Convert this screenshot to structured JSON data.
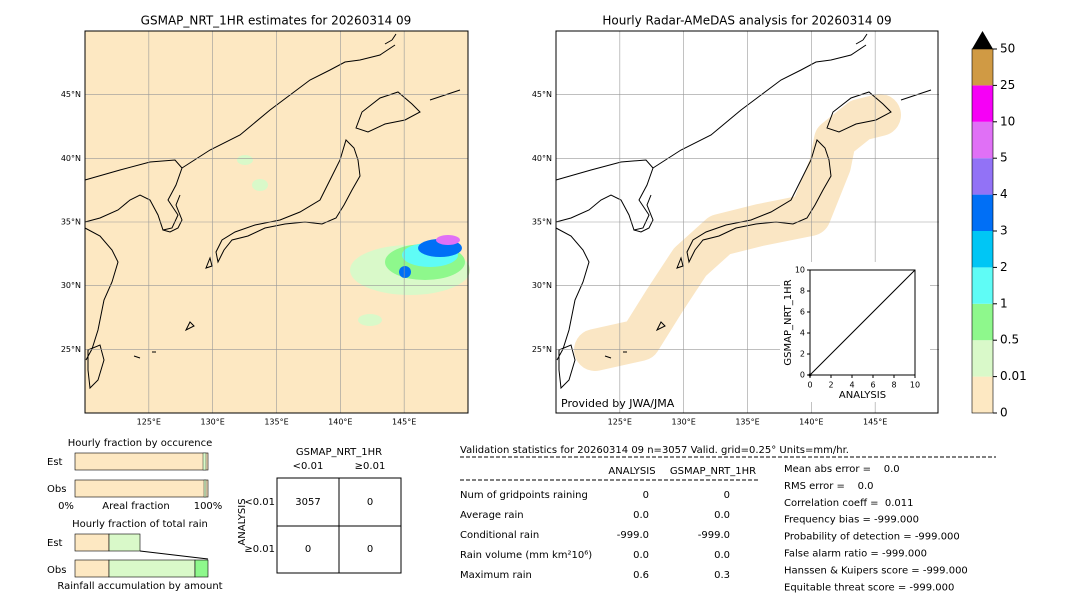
{
  "left_map": {
    "title": "GSMAP_NRT_1HR estimates for 20260314 09"
  },
  "right_map": {
    "title": "Hourly Radar-AMeDAS analysis for 20260314 09",
    "credit": "Provided by JWA/JMA",
    "inset": {
      "xlabel": "ANALYSIS",
      "ylabel": "GSMAP_NRT_1HR",
      "xlim": [
        0,
        10
      ],
      "ylim": [
        0,
        10
      ],
      "xticks": [
        0,
        2,
        4,
        6,
        8,
        10
      ],
      "yticks": [
        0,
        2,
        4,
        6,
        8,
        10
      ]
    }
  },
  "map_axes": {
    "lon_lim": [
      120,
      150
    ],
    "lat_lim": [
      20,
      50
    ],
    "lon_ticks": [
      {
        "value": 125,
        "label": "125°E"
      },
      {
        "value": 130,
        "label": "130°E"
      },
      {
        "value": 135,
        "label": "135°E"
      },
      {
        "value": 140,
        "label": "140°E"
      },
      {
        "value": 145,
        "label": "145°E"
      }
    ],
    "lat_ticks": [
      {
        "value": 25,
        "label": "25°N"
      },
      {
        "value": 30,
        "label": "30°N"
      },
      {
        "value": 35,
        "label": "35°N"
      },
      {
        "value": 40,
        "label": "40°N"
      },
      {
        "value": 45,
        "label": "45°N"
      }
    ]
  },
  "colorbar": {
    "levels": [
      0,
      0.01,
      0.5,
      1,
      2,
      3,
      4,
      5,
      10,
      25,
      50
    ],
    "colors": [
      "#fde8c2",
      "#d9f9c9",
      "#8ef88c",
      "#5ffcf6",
      "#00c6f5",
      "#006ff6",
      "#9272f6",
      "#e070f6",
      "#f600f6",
      "#d09a44"
    ]
  },
  "fraction_occurrence": {
    "title": "Hourly fraction by occurence",
    "rows": [
      "Est",
      "Obs"
    ],
    "xlabel": "Areal fraction",
    "tick_labels": [
      "0%",
      "100%"
    ]
  },
  "fraction_rain": {
    "title": "Hourly fraction of total rain",
    "rows": [
      "Est",
      "Obs"
    ],
    "xlabel": "Rainfall accumulation by amount"
  },
  "contingency": {
    "title": "GSMAP_NRT_1HR",
    "col_headers": [
      "<0.01",
      "≥0.01"
    ],
    "row_label": "ANALYSIS",
    "row_headers": [
      "<0.01",
      "≥0.01"
    ],
    "cells": [
      [
        3057,
        0
      ],
      [
        0,
        0
      ]
    ]
  },
  "validation": {
    "header": "Validation statistics for 20260314 09  n=3057 Valid. grid=0.25° Units=mm/hr.",
    "columns": [
      "ANALYSIS",
      "GSMAP_NRT_1HR"
    ],
    "rows": [
      {
        "label": "Num of gridpoints raining",
        "values": [
          "0",
          "0"
        ]
      },
      {
        "label": "Average rain",
        "values": [
          "0.0",
          "0.0"
        ]
      },
      {
        "label": "Conditional rain",
        "values": [
          "-999.0",
          "-999.0"
        ]
      },
      {
        "label": "Rain volume (mm km²10⁶)",
        "values": [
          "0.0",
          "0.0"
        ]
      },
      {
        "label": "Maximum rain",
        "values": [
          "0.6",
          "0.3"
        ]
      }
    ],
    "scores": [
      "Mean abs error =    0.0",
      "RMS error =    0.0",
      "Correlation coeff =  0.011",
      "Frequency bias = -999.000",
      "Probability of detection = -999.000",
      "False alarm ratio = -999.000",
      "Hanssen & Kuipers score = -999.000",
      "Equitable threat score = -999.000"
    ]
  }
}
